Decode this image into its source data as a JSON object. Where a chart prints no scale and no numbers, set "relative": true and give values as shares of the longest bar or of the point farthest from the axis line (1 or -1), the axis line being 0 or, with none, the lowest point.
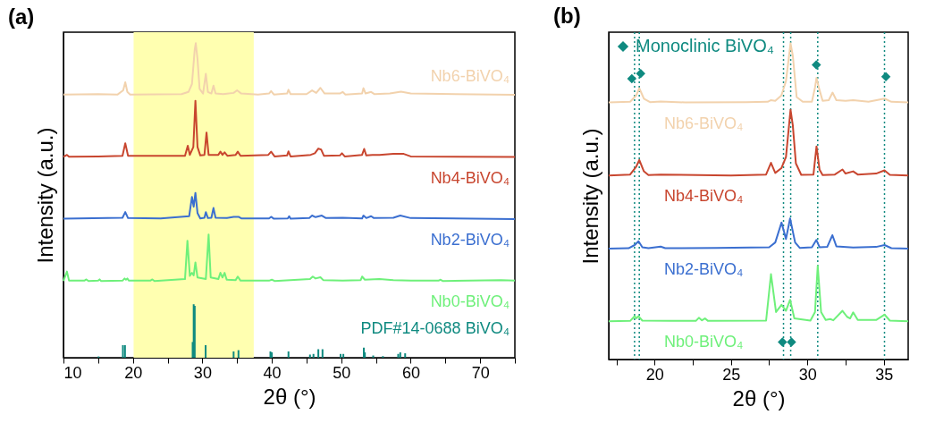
{
  "chart_data": [
    {
      "type": "line",
      "title": "(a)",
      "xlabel": "2θ (°)",
      "ylabel": "Intensity (a.u.)",
      "relative": true,
      "tick_labels": "x",
      "grid": false,
      "xlim": [
        10,
        75
      ],
      "xticks": [
        10,
        {
          "value": 15,
          "label": null
        },
        20,
        {
          "value": 25,
          "label": null
        },
        30,
        {
          "value": 35,
          "label": null
        },
        40,
        {
          "value": 45,
          "label": null
        },
        50,
        {
          "value": 55,
          "label": null
        },
        60,
        {
          "value": 65,
          "label": null
        },
        70,
        {
          "value": 75,
          "label": null
        }
      ],
      "bands": [
        {
          "axis": "x",
          "from": 20.1,
          "to": 37.4,
          "color": "#ffffb0"
        }
      ],
      "series": [
        {
          "name": "Nb6-BiVO₄",
          "color": "#f2d2ad",
          "x": [
            10,
            15,
            17.8,
            18.6,
            18.9,
            19.2,
            19.6,
            27,
            28,
            28.5,
            28.9,
            29.05,
            29.3,
            29.6,
            30.1,
            30.5,
            30.8,
            31.3,
            31.6,
            31.9,
            33,
            34.5,
            35,
            35.6,
            38,
            39.6,
            39.9,
            40.3,
            42.2,
            42.4,
            42.7,
            45,
            45.8,
            46.4,
            47,
            47.6,
            49.8,
            50.2,
            50.6,
            53,
            53.2,
            53.5,
            54.3,
            54.8,
            57,
            58.6,
            60,
            75
          ],
          "values": [
            0.837,
            0.838,
            0.837,
            0.85,
            0.876,
            0.845,
            0.837,
            0.838,
            0.845,
            0.87,
            0.98,
            1,
            0.95,
            0.855,
            0.84,
            0.903,
            0.845,
            0.84,
            0.865,
            0.84,
            0.838,
            0.842,
            0.85,
            0.84,
            0.837,
            0.84,
            0.848,
            0.837,
            0.84,
            0.852,
            0.838,
            0.838,
            0.85,
            0.842,
            0.858,
            0.84,
            0.84,
            0.845,
            0.837,
            0.84,
            0.857,
            0.84,
            0.845,
            0.838,
            0.84,
            0.846,
            0.84,
            0.836
          ]
        },
        {
          "name": "Nb4-BiVO₄",
          "color": "#c8462f",
          "x": [
            10,
            10.5,
            10.8,
            15,
            18.5,
            18.9,
            19.3,
            27.5,
            27.9,
            28.2,
            28.7,
            29,
            29.3,
            29.7,
            30.3,
            30.6,
            30.9,
            32.3,
            32.6,
            32.9,
            33.2,
            33.6,
            34.8,
            35.1,
            35.5,
            39.5,
            39.9,
            40.4,
            42.2,
            42.4,
            42.7,
            45.6,
            46.2,
            46.7,
            47.1,
            47.5,
            49.8,
            50.1,
            50.5,
            53,
            53.3,
            53.6,
            54.5,
            55.5,
            57.5,
            59,
            60,
            75
          ],
          "values": [
            0.639,
            0.645,
            0.639,
            0.64,
            0.642,
            0.682,
            0.642,
            0.642,
            0.674,
            0.645,
            0.67,
            0.817,
            0.67,
            0.643,
            0.645,
            0.716,
            0.645,
            0.645,
            0.655,
            0.645,
            0.653,
            0.642,
            0.645,
            0.655,
            0.642,
            0.645,
            0.655,
            0.64,
            0.643,
            0.656,
            0.64,
            0.645,
            0.65,
            0.665,
            0.662,
            0.642,
            0.643,
            0.65,
            0.64,
            0.645,
            0.664,
            0.643,
            0.645,
            0.645,
            0.648,
            0.648,
            0.64,
            0.638
          ]
        },
        {
          "name": "Nb2-BiVO₄",
          "color": "#3b6fd0",
          "x": [
            10,
            18.5,
            18.9,
            19.3,
            24,
            28.1,
            28.5,
            28.75,
            29,
            29.3,
            29.7,
            30.3,
            30.5,
            30.8,
            31.3,
            31.6,
            31.9,
            33.5,
            34.5,
            35.2,
            35.6,
            39.6,
            39.9,
            40.3,
            42.3,
            42.5,
            42.7,
            45.4,
            45.8,
            46.3,
            47.2,
            47.8,
            50.2,
            53,
            53.2,
            53.6,
            54.3,
            54.7,
            57.5,
            58.5,
            60,
            75
          ],
          "values": [
            0.442,
            0.445,
            0.463,
            0.444,
            0.443,
            0.45,
            0.511,
            0.48,
            0.524,
            0.46,
            0.443,
            0.445,
            0.463,
            0.444,
            0.445,
            0.476,
            0.445,
            0.444,
            0.448,
            0.448,
            0.443,
            0.443,
            0.448,
            0.442,
            0.443,
            0.45,
            0.442,
            0.444,
            0.452,
            0.447,
            0.452,
            0.444,
            0.445,
            0.443,
            0.452,
            0.444,
            0.45,
            0.444,
            0.445,
            0.452,
            0.444,
            0.441
          ]
        },
        {
          "name": "Nb0-BiVO₄",
          "color": "#6ef07a",
          "x": [
            10,
            10.5,
            10.8,
            13,
            13.3,
            13.6,
            15,
            15.2,
            15.4,
            18.5,
            18.8,
            19,
            19.2,
            19.4,
            22.5,
            22.8,
            23.1,
            27.5,
            27.85,
            28.2,
            28.5,
            28.75,
            29,
            29.3,
            30.5,
            30.9,
            31.2,
            32.3,
            32.6,
            32.9,
            33.2,
            33.5,
            34.8,
            35.1,
            35.5,
            39.6,
            40,
            40.4,
            45.5,
            45.9,
            46.3,
            47,
            47.4,
            50.2,
            52.8,
            53,
            53.4,
            55.5,
            57.5,
            60,
            64,
            64.3,
            64.6,
            73,
            75
          ],
          "values": [
            0.244,
            0.274,
            0.245,
            0.245,
            0.249,
            0.244,
            0.245,
            0.249,
            0.244,
            0.245,
            0.252,
            0.248,
            0.252,
            0.245,
            0.245,
            0.249,
            0.244,
            0.25,
            0.372,
            0.26,
            0.27,
            0.262,
            0.303,
            0.255,
            0.25,
            0.392,
            0.255,
            0.25,
            0.27,
            0.255,
            0.27,
            0.248,
            0.247,
            0.258,
            0.245,
            0.245,
            0.248,
            0.244,
            0.25,
            0.258,
            0.252,
            0.256,
            0.247,
            0.245,
            0.247,
            0.258,
            0.248,
            0.25,
            0.247,
            0.245,
            0.245,
            0.248,
            0.244,
            0.247,
            0.245
          ]
        },
        {
          "name": "PDF#14-0688 BiVO₄",
          "type": "bar",
          "color": "#0f8a80",
          "x": [
            15.05,
            18.56,
            18.86,
            28.6,
            28.75,
            28.9,
            30.47,
            34.5,
            35.2,
            39.8,
            40,
            42.4,
            45.5,
            46,
            46.7,
            47.3,
            49.9,
            50.3,
            53.25,
            53.4,
            54.6,
            56,
            58.2,
            58.5,
            59.2
          ],
          "values": [
            0.004,
            0.04,
            0.04,
            0.05,
            0.17,
            0.165,
            0.04,
            0.02,
            0.024,
            0.02,
            0.017,
            0.02,
            0.01,
            0.012,
            0.027,
            0.027,
            0.012,
            0.012,
            0.032,
            0.017,
            0.007,
            0.005,
            0.012,
            0.017,
            0.014
          ]
        }
      ]
    },
    {
      "type": "line",
      "title": "(b)",
      "xlabel": "2θ (°)",
      "ylabel": "Intensity (a.u.)",
      "relative": true,
      "tick_labels": "x",
      "grid": false,
      "legend": "top left",
      "xlim": [
        17,
        36.6
      ],
      "xticks": [
        {
          "value": 17.5,
          "label": null
        },
        20,
        {
          "value": 22.5,
          "label": null
        },
        25,
        {
          "value": 27.5,
          "label": null
        },
        30,
        {
          "value": 32.5,
          "label": null
        },
        35
      ],
      "ref_lines": [
        {
          "axis": "x",
          "value": 18.69,
          "color": "#0f8a80",
          "line_style": "dotted"
        },
        {
          "axis": "x",
          "value": 19.0,
          "color": "#0f8a80",
          "line_style": "dotted"
        },
        {
          "axis": "x",
          "value": 28.44,
          "color": "#0f8a80",
          "line_style": "dotted"
        },
        {
          "axis": "x",
          "value": 28.91,
          "color": "#0f8a80",
          "line_style": "dotted"
        },
        {
          "axis": "x",
          "value": 30.68,
          "color": "#0f8a80",
          "line_style": "dotted"
        },
        {
          "axis": "x",
          "value": 35.05,
          "color": "#0f8a80",
          "line_style": "dotted"
        }
      ],
      "series": [
        {
          "name": "Nb6-BiVO₄",
          "color": "#f2d2ad",
          "x": [
            17,
            18.4,
            18.8,
            19,
            19.3,
            19.7,
            20.4,
            22,
            26,
            27.4,
            27.6,
            27.9,
            28.3,
            28.6,
            28.8,
            28.9,
            29.05,
            29.3,
            29.7,
            30.3,
            30.5,
            30.6,
            30.75,
            31,
            31.4,
            31.65,
            31.9,
            32.5,
            33,
            34,
            35.05,
            35.5,
            36.6
          ],
          "values": [
            0.813,
            0.815,
            0.835,
            0.858,
            0.825,
            0.814,
            0.816,
            0.813,
            0.814,
            0.815,
            0.82,
            0.818,
            0.835,
            0.88,
            0.96,
            1,
            0.96,
            0.83,
            0.815,
            0.815,
            0.86,
            0.891,
            0.86,
            0.818,
            0.82,
            0.844,
            0.82,
            0.818,
            0.82,
            0.815,
            0.825,
            0.815,
            0.813
          ]
        },
        {
          "name": "Nb4-BiVO₄",
          "color": "#c8462f",
          "x": [
            17,
            18.4,
            18.8,
            19,
            19.3,
            19.6,
            20.4,
            25,
            27.3,
            27.62,
            27.9,
            28.3,
            28.6,
            28.8,
            28.9,
            29.05,
            29.25,
            29.6,
            30.4,
            30.6,
            30.8,
            31,
            31.8,
            32.3,
            32.5,
            33,
            33.3,
            34.5,
            35.05,
            35.4,
            36.6
          ],
          "values": [
            0.582,
            0.585,
            0.61,
            0.631,
            0.595,
            0.583,
            0.585,
            0.582,
            0.585,
            0.622,
            0.59,
            0.605,
            0.64,
            0.74,
            0.79,
            0.74,
            0.62,
            0.584,
            0.585,
            0.674,
            0.6,
            0.583,
            0.585,
            0.601,
            0.588,
            0.595,
            0.585,
            0.588,
            0.598,
            0.584,
            0.582
          ]
        },
        {
          "name": "Nb2-BiVO₄",
          "color": "#3b6fd0",
          "x": [
            17,
            18.3,
            18.7,
            18.95,
            19.2,
            19.6,
            20.4,
            20.7,
            24,
            26.3,
            27.5,
            27.9,
            28.31,
            28.6,
            28.87,
            29.2,
            29.5,
            30.3,
            30.59,
            30.8,
            31.3,
            31.64,
            31.9,
            33,
            34.5,
            35.05,
            35.5,
            36.6
          ],
          "values": [
            0.351,
            0.352,
            0.362,
            0.374,
            0.355,
            0.352,
            0.357,
            0.352,
            0.353,
            0.354,
            0.355,
            0.37,
            0.433,
            0.381,
            0.446,
            0.37,
            0.353,
            0.355,
            0.378,
            0.355,
            0.356,
            0.393,
            0.358,
            0.354,
            0.356,
            0.362,
            0.352,
            0.351
          ]
        },
        {
          "name": "Nb0-BiVO₄",
          "color": "#6ef07a",
          "x": [
            17,
            18.4,
            18.7,
            18.8,
            18.95,
            19.2,
            21,
            22.7,
            22.9,
            23.1,
            23.3,
            23.5,
            27.3,
            27.62,
            27.95,
            28.31,
            28.6,
            28.87,
            29.15,
            30.2,
            30.5,
            30.68,
            30.9,
            31.2,
            31.5,
            31.7,
            32.3,
            32.6,
            32.8,
            33,
            33.3,
            34.5,
            35.05,
            35.4,
            36.6
          ],
          "values": [
            0.121,
            0.122,
            0.137,
            0.13,
            0.137,
            0.123,
            0.122,
            0.122,
            0.132,
            0.124,
            0.13,
            0.122,
            0.123,
            0.27,
            0.15,
            0.173,
            0.154,
            0.189,
            0.13,
            0.123,
            0.15,
            0.296,
            0.15,
            0.125,
            0.128,
            0.124,
            0.154,
            0.135,
            0.13,
            0.149,
            0.125,
            0.125,
            0.142,
            0.123,
            0.121
          ]
        },
        {
          "name": "Monoclinic BiVO₄",
          "type": "scatter",
          "marker": "diamond",
          "color": "#0f8a80",
          "x": [
            18.51,
            19.09,
            30.59,
            35.14,
            28.37,
            28.96
          ],
          "values": [
            0.888,
            0.904,
            0.932,
            0.894,
            0.055,
            0.055
          ]
        }
      ]
    }
  ]
}
